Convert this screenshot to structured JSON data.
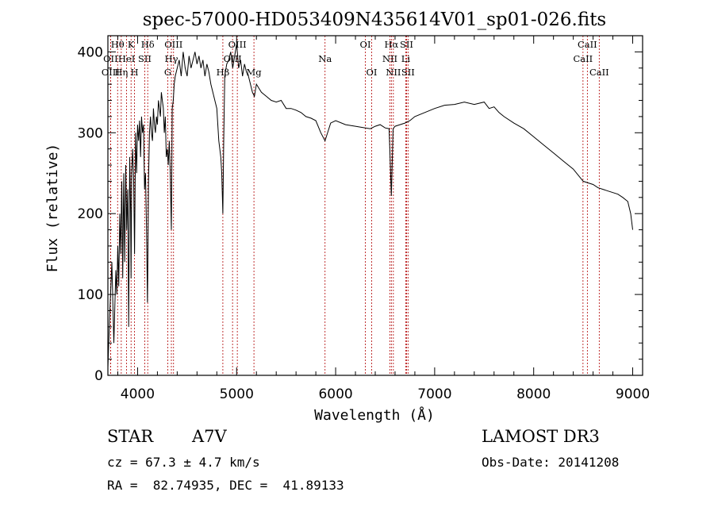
{
  "chart_data": {
    "type": "line",
    "title": "spec-57000-HD053409N435614V01_sp01-026.fits",
    "xlabel": "Wavelength (Å)",
    "ylabel": "Flux (relative)",
    "xlim": [
      3700,
      9100
    ],
    "ylim": [
      0,
      420
    ],
    "xticks": [
      4000,
      5000,
      6000,
      7000,
      8000,
      9000
    ],
    "yticks": [
      0,
      100,
      200,
      300,
      400
    ],
    "grid": false,
    "line_color": "#000000",
    "marker_color": "#b00000",
    "spectral_lines": [
      {
        "label": "Hθ",
        "wavelength": 3798,
        "row": 0
      },
      {
        "label": "OII",
        "wavelength": 3727,
        "row": 1
      },
      {
        "label": "OIII",
        "wavelength": 3727,
        "row": 2
      },
      {
        "label": "K",
        "wavelength": 3934,
        "row": 0
      },
      {
        "label": "HeI",
        "wavelength": 3889,
        "row": 1
      },
      {
        "label": "Hη",
        "wavelength": 3835,
        "row": 2
      },
      {
        "label": "H",
        "wavelength": 3969,
        "row": 2
      },
      {
        "label": "Hδ",
        "wavelength": 4102,
        "row": 0
      },
      {
        "label": "SII",
        "wavelength": 4072,
        "row": 1
      },
      {
        "label": "OIII",
        "wavelength": 4363,
        "row": 0
      },
      {
        "label": "Hγ",
        "wavelength": 4341,
        "row": 1
      },
      {
        "label": "G",
        "wavelength": 4305,
        "row": 2
      },
      {
        "label": "OIII",
        "wavelength": 5007,
        "row": 0
      },
      {
        "label": "OIII",
        "wavelength": 4959,
        "row": 1
      },
      {
        "label": "Hβ",
        "wavelength": 4861,
        "row": 2
      },
      {
        "label": "Mg",
        "wavelength": 5175,
        "row": 2
      },
      {
        "label": "Na",
        "wavelength": 5893,
        "row": 1
      },
      {
        "label": "OI",
        "wavelength": 6300,
        "row": 0
      },
      {
        "label": "OI",
        "wavelength": 6364,
        "row": 2
      },
      {
        "label": "Hα",
        "wavelength": 6563,
        "row": 0
      },
      {
        "label": "NII",
        "wavelength": 6548,
        "row": 1
      },
      {
        "label": "NII",
        "wavelength": 6583,
        "row": 2
      },
      {
        "label": "SII",
        "wavelength": 6716,
        "row": 0
      },
      {
        "label": "Li",
        "wavelength": 6708,
        "row": 1
      },
      {
        "label": "SII",
        "wavelength": 6731,
        "row": 2
      },
      {
        "label": "CaII",
        "wavelength": 8542,
        "row": 0
      },
      {
        "label": "CaII",
        "wavelength": 8498,
        "row": 1
      },
      {
        "label": "CaII",
        "wavelength": 8662,
        "row": 2
      }
    ],
    "series": [
      {
        "x": [
          3700,
          3720,
          3740,
          3760,
          3780,
          3790,
          3800,
          3810,
          3820,
          3830,
          3840,
          3850,
          3860,
          3870,
          3880,
          3890,
          3900,
          3910,
          3920,
          3930,
          3934,
          3940,
          3950,
          3960,
          3969,
          3980,
          3990,
          4000,
          4010,
          4020,
          4030,
          4040,
          4050,
          4060,
          4070,
          4080,
          4090,
          4100,
          4102,
          4110,
          4120,
          4130,
          4140,
          4150,
          4160,
          4170,
          4180,
          4190,
          4200,
          4210,
          4220,
          4230,
          4240,
          4250,
          4260,
          4270,
          4280,
          4290,
          4300,
          4310,
          4320,
          4330,
          4341,
          4350,
          4360,
          4370,
          4380,
          4400,
          4420,
          4440,
          4460,
          4480,
          4500,
          4520,
          4540,
          4560,
          4580,
          4600,
          4620,
          4640,
          4660,
          4680,
          4700,
          4720,
          4740,
          4760,
          4780,
          4800,
          4820,
          4840,
          4850,
          4861,
          4870,
          4880,
          4900,
          4920,
          4940,
          4960,
          4980,
          5000,
          5020,
          5040,
          5060,
          5080,
          5100,
          5120,
          5140,
          5160,
          5180,
          5200,
          5250,
          5300,
          5350,
          5400,
          5450,
          5500,
          5550,
          5600,
          5650,
          5700,
          5750,
          5800,
          5850,
          5893,
          5950,
          6000,
          6100,
          6200,
          6300,
          6350,
          6400,
          6450,
          6500,
          6540,
          6563,
          6580,
          6600,
          6650,
          6700,
          6750,
          6800,
          6900,
          7000,
          7100,
          7200,
          7300,
          7400,
          7500,
          7550,
          7600,
          7650,
          7700,
          7800,
          7900,
          8000,
          8100,
          8200,
          8300,
          8400,
          8500,
          8550,
          8600,
          8650,
          8700,
          8750,
          8800,
          8850,
          8900,
          8950,
          8980,
          9000
        ],
        "y": [
          10,
          80,
          140,
          40,
          130,
          100,
          160,
          110,
          200,
          150,
          240,
          120,
          250,
          140,
          260,
          180,
          230,
          60,
          270,
          200,
          120,
          250,
          280,
          240,
          150,
          300,
          250,
          310,
          290,
          315,
          270,
          320,
          300,
          310,
          230,
          250,
          180,
          90,
          120,
          240,
          300,
          320,
          300,
          290,
          330,
          310,
          300,
          320,
          310,
          340,
          330,
          320,
          350,
          340,
          330,
          300,
          320,
          270,
          280,
          260,
          290,
          250,
          180,
          330,
          340,
          360,
          370,
          380,
          390,
          370,
          400,
          380,
          370,
          395,
          380,
          390,
          400,
          385,
          395,
          380,
          390,
          370,
          385,
          375,
          360,
          350,
          340,
          330,
          290,
          270,
          250,
          200,
          290,
          370,
          385,
          390,
          400,
          380,
          395,
          410,
          380,
          390,
          370,
          385,
          375,
          370,
          360,
          350,
          345,
          360,
          350,
          345,
          340,
          338,
          340,
          330,
          330,
          328,
          325,
          320,
          318,
          315,
          300,
          290,
          312,
          315,
          310,
          308,
          306,
          305,
          308,
          310,
          306,
          305,
          222,
          305,
          308,
          310,
          312,
          315,
          320,
          325,
          330,
          334,
          335,
          338,
          335,
          338,
          330,
          332,
          325,
          320,
          312,
          305,
          295,
          285,
          275,
          265,
          255,
          240,
          238,
          236,
          232,
          230,
          228,
          226,
          224,
          220,
          215,
          200,
          180
        ]
      }
    ]
  },
  "info": {
    "left_line1_col1": "STAR",
    "left_line1_col2": "A7V",
    "left_line2": "cz = 67.3 ± 4.7 km/s",
    "left_line3": "RA =  82.74935, DEC =  41.89133",
    "right_line1": "LAMOST DR3",
    "right_line2": "Obs-Date: 20141208"
  }
}
